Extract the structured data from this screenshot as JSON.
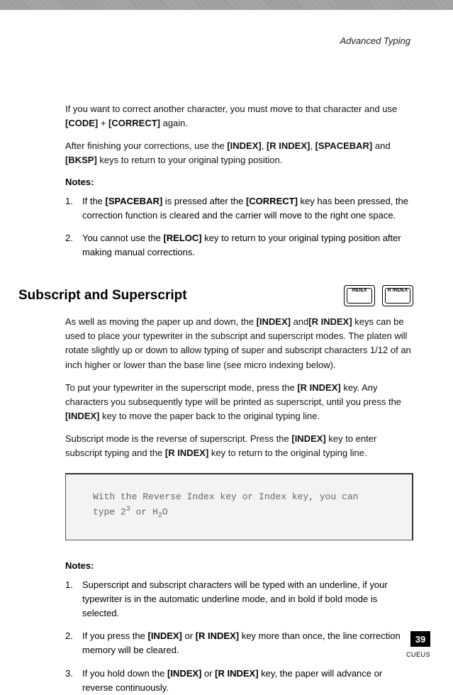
{
  "header": {
    "chapter": "Advanced Typing"
  },
  "intro": {
    "p1_a": "If you want to correct another character, you must move to that character and use ",
    "p1_b": "[CODE]",
    "p1_c": " + ",
    "p1_d": "[CORRECT]",
    "p1_e": " again.",
    "p2_a": "After finishing your corrections, use the ",
    "p2_b": "[INDEX]",
    "p2_c": ", ",
    "p2_d": "[R INDEX]",
    "p2_e": ", ",
    "p2_f": "[SPACEBAR]",
    "p2_g": " and ",
    "p2_h": "[BKSP]",
    "p2_i": " keys to return to your original typing position."
  },
  "notes1_head": "Notes:",
  "notes1": [
    {
      "num": "1.",
      "a": "If the  ",
      "b": "[SPACEBAR]",
      "c": " is pressed after the ",
      "d": "[CORRECT]",
      "e": " key has been pressed, the correction function is cleared and the carrier will move to the right one space."
    },
    {
      "num": "2.",
      "a": "You cannot use the ",
      "b": "[RELOC]",
      "c": " key to return to your original typing position after making manual corrections.",
      "d": "",
      "e": ""
    }
  ],
  "section": {
    "title": "Subscript and Superscript",
    "key1": "INDEX",
    "key2": "R INDEX"
  },
  "sub": {
    "p1_a": "As well as moving the paper up and down, the ",
    "p1_b": "[INDEX]",
    "p1_c": " and",
    "p1_d": "[R INDEX]",
    "p1_e": " keys can be used to place your typewriter in the  subscript and superscript modes. The platen will rotate slightly up or down to allow typing of super and subscript characters 1/12 of an inch higher or lower than the base line (see micro indexing below).",
    "p2_a": "To put your typewriter in the superscript mode, press the ",
    "p2_b": "[R INDEX]",
    "p2_c": " key. Any characters you subsequently type will be printed as superscript, until you press the ",
    "p2_d": "[INDEX]",
    "p2_e": " key to move the paper back to the original typing line.",
    "p3_a": "Subscript mode is the reverse of superscript. Press the ",
    "p3_b": "[INDEX]",
    "p3_c": " key to enter subscript typing and the ",
    "p3_d": "[R INDEX]",
    "p3_e": " key to return to the original typing line."
  },
  "example": {
    "l1": "With the Reverse Index key or Index key, you can",
    "l2_a": "type 2",
    "l2_sup": "3",
    "l2_b": " or H",
    "l2_sub": "2",
    "l2_c": "O"
  },
  "notes2_head": "Notes:",
  "notes2": [
    {
      "num": "1.",
      "a": "Superscript and subscript characters will be typed with an underline, if your typewriter is in the automatic underline mode, and in bold if bold mode is selected.",
      "b": "",
      "c": "",
      "d": "",
      "e": ""
    },
    {
      "num": "2.",
      "a": "If you press the ",
      "b": "[INDEX]",
      "c": " or ",
      "d": "[R INDEX]",
      "e": " key more than once, the line correction memory will be cleared."
    },
    {
      "num": "3.",
      "a": "If you hold down the ",
      "b": "[INDEX]",
      "c": " or ",
      "d": "[R INDEX]",
      "e": " key, the paper will advance or reverse continuously."
    }
  ],
  "page": {
    "number": "39",
    "code": "CUEUS"
  }
}
